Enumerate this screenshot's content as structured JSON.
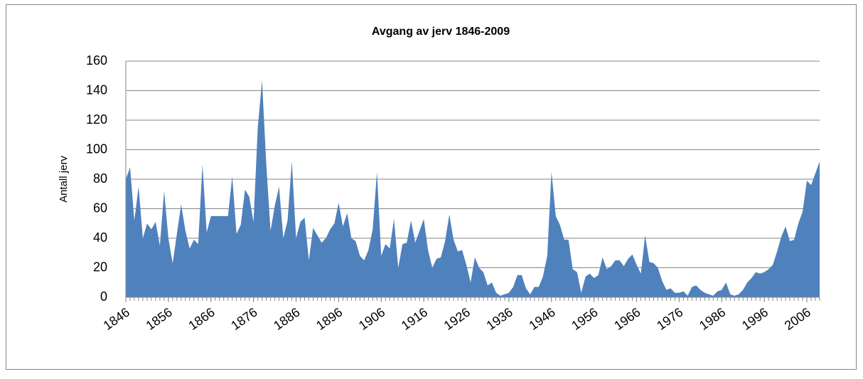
{
  "chart_data": {
    "type": "area",
    "title": "Avgang av jerv 1846-2009",
    "y_label": "Antall jerv",
    "x": [
      1846,
      1847,
      1848,
      1849,
      1850,
      1851,
      1852,
      1853,
      1854,
      1855,
      1856,
      1857,
      1858,
      1859,
      1860,
      1861,
      1862,
      1863,
      1864,
      1865,
      1866,
      1867,
      1868,
      1869,
      1870,
      1871,
      1872,
      1873,
      1874,
      1875,
      1876,
      1877,
      1878,
      1879,
      1880,
      1881,
      1882,
      1883,
      1884,
      1885,
      1886,
      1887,
      1888,
      1889,
      1890,
      1891,
      1892,
      1893,
      1894,
      1895,
      1896,
      1897,
      1898,
      1899,
      1900,
      1901,
      1902,
      1903,
      1904,
      1905,
      1906,
      1907,
      1908,
      1909,
      1910,
      1911,
      1912,
      1913,
      1914,
      1915,
      1916,
      1917,
      1918,
      1919,
      1920,
      1921,
      1922,
      1923,
      1924,
      1925,
      1926,
      1927,
      1928,
      1929,
      1930,
      1931,
      1932,
      1933,
      1934,
      1935,
      1936,
      1937,
      1938,
      1939,
      1940,
      1941,
      1942,
      1943,
      1944,
      1945,
      1946,
      1947,
      1948,
      1949,
      1950,
      1951,
      1952,
      1953,
      1954,
      1955,
      1956,
      1957,
      1958,
      1959,
      1960,
      1961,
      1962,
      1963,
      1964,
      1965,
      1966,
      1967,
      1968,
      1969,
      1970,
      1971,
      1972,
      1973,
      1974,
      1975,
      1976,
      1977,
      1978,
      1979,
      1980,
      1981,
      1982,
      1983,
      1984,
      1985,
      1986,
      1987,
      1988,
      1989,
      1990,
      1991,
      1992,
      1993,
      1994,
      1995,
      1996,
      1997,
      1998,
      1999,
      2000,
      2001,
      2002,
      2003,
      2004,
      2005,
      2006,
      2007,
      2008,
      2009
    ],
    "values": [
      80,
      88,
      52,
      75,
      40,
      50,
      46,
      51,
      35,
      72,
      40,
      23,
      43,
      63,
      45,
      33,
      39,
      36,
      90,
      44,
      55,
      55,
      55,
      55,
      55,
      82,
      43,
      49,
      73,
      68,
      51,
      115,
      147,
      90,
      45,
      62,
      75,
      40,
      52,
      92,
      40,
      51,
      54,
      25,
      47,
      42,
      37,
      40,
      46,
      50,
      64,
      48,
      57,
      40,
      38,
      28,
      25,
      32,
      46,
      85,
      28,
      36,
      33,
      53,
      20,
      36,
      37,
      52,
      37,
      45,
      53,
      32,
      20,
      26,
      27,
      38,
      56,
      39,
      31,
      32,
      22,
      10,
      27,
      20,
      17,
      8,
      10,
      3,
      1,
      2,
      3,
      7,
      15,
      15,
      6,
      2,
      7,
      7,
      14,
      28,
      85,
      55,
      49,
      39,
      39,
      19,
      17,
      3,
      14,
      16,
      13,
      15,
      27,
      19,
      21,
      25,
      25,
      21,
      26,
      29,
      22,
      16,
      42,
      24,
      23,
      20,
      11,
      5,
      6,
      3,
      3,
      4,
      1,
      7,
      8,
      5,
      3,
      2,
      1,
      4,
      5,
      10,
      2,
      1,
      2,
      5,
      10,
      13,
      17,
      16,
      17,
      19,
      22,
      31,
      41,
      48,
      38,
      39,
      50,
      58,
      79,
      76,
      84,
      92
    ],
    "color": "#4f81bd",
    "xlim": [
      1846,
      2009
    ],
    "xticks": [
      1846,
      1856,
      1866,
      1876,
      1886,
      1896,
      1906,
      1916,
      1926,
      1936,
      1946,
      1956,
      1966,
      1976,
      1986,
      1996,
      2006
    ],
    "ylim": [
      0,
      160
    ],
    "yticks": [
      0,
      20,
      40,
      60,
      80,
      100,
      120,
      140,
      160
    ],
    "grid": true
  }
}
